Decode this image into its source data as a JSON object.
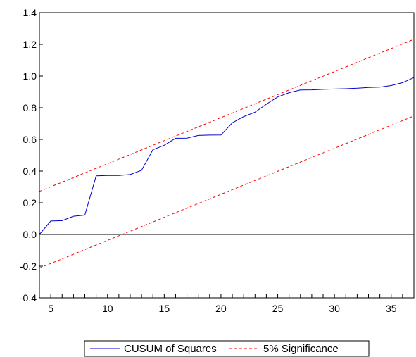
{
  "chart_data": {
    "type": "line",
    "title": "",
    "xlabel": "",
    "ylabel": "",
    "xlim": [
      4,
      37
    ],
    "ylim": [
      -0.4,
      1.4
    ],
    "x_ticks": [
      5,
      10,
      15,
      20,
      25,
      30,
      35
    ],
    "y_ticks": [
      -0.4,
      -0.2,
      0.0,
      0.2,
      0.4,
      0.6,
      0.8,
      1.0,
      1.2,
      1.4
    ],
    "y_tick_labels": [
      "-0.4",
      "-0.2",
      "0.0",
      "0.2",
      "0.4",
      "0.6",
      "0.8",
      "1.0",
      "1.2",
      "1.4"
    ],
    "zero_line": true,
    "grid": false,
    "legend_position": "bottom",
    "series": [
      {
        "name": "CUSUM of Squares",
        "color": "#0000cc",
        "style": "solid",
        "x": [
          4,
          5,
          6,
          7,
          8,
          9,
          10,
          11,
          12,
          13,
          14,
          15,
          16,
          17,
          18,
          19,
          20,
          21,
          22,
          23,
          24,
          25,
          26,
          27,
          28,
          29,
          30,
          31,
          32,
          33,
          34,
          35,
          36,
          37
        ],
        "y": [
          0.0,
          0.085,
          0.087,
          0.115,
          0.122,
          0.37,
          0.372,
          0.372,
          0.378,
          0.405,
          0.535,
          0.563,
          0.607,
          0.608,
          0.625,
          0.627,
          0.628,
          0.705,
          0.744,
          0.772,
          0.822,
          0.868,
          0.895,
          0.912,
          0.913,
          0.916,
          0.918,
          0.92,
          0.923,
          0.928,
          0.93,
          0.94,
          0.958,
          0.99
        ]
      },
      {
        "name": "5% Significance",
        "color": "#ff0000",
        "style": "dashed",
        "x": [
          4,
          37
        ],
        "y": [
          0.272,
          1.232
        ]
      },
      {
        "name": "5% Significance",
        "color": "#ff0000",
        "style": "dashed",
        "x": [
          4,
          37
        ],
        "y": [
          -0.212,
          0.748
        ],
        "legend": false
      }
    ]
  }
}
